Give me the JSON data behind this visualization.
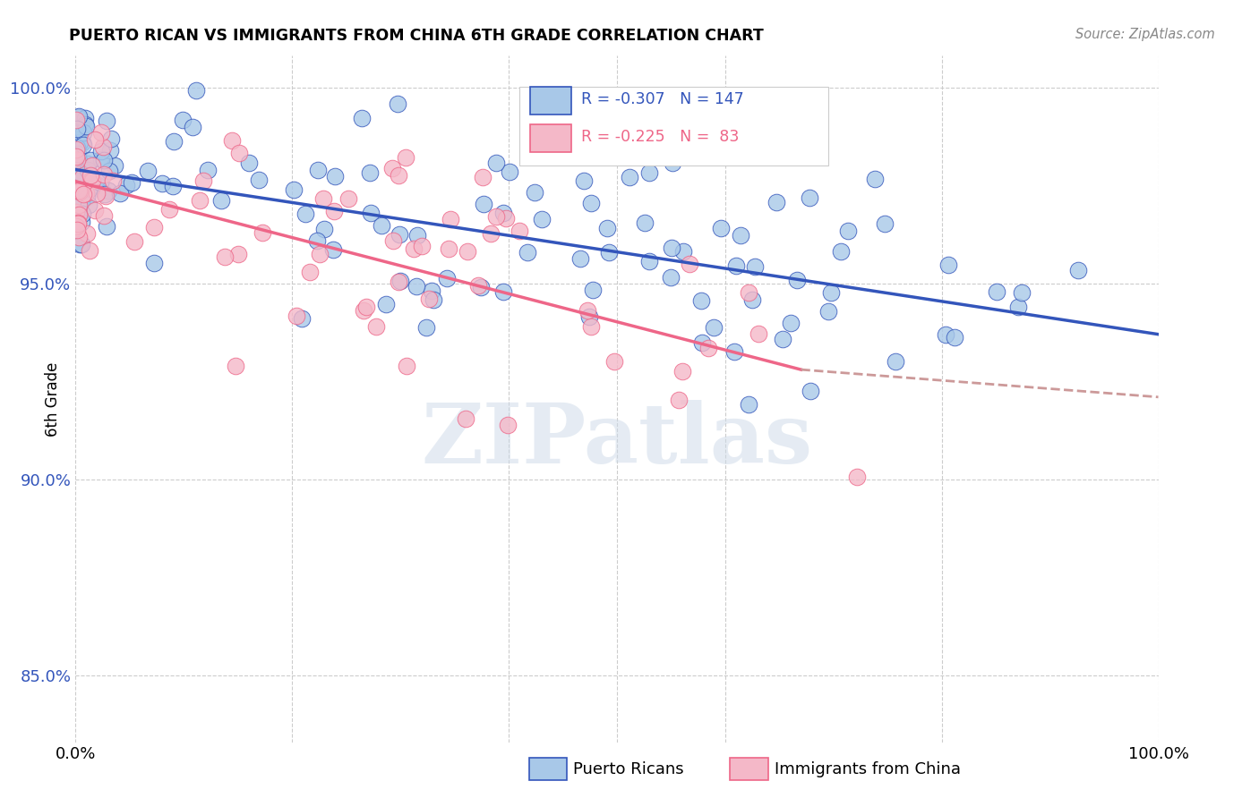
{
  "title": "PUERTO RICAN VS IMMIGRANTS FROM CHINA 6TH GRADE CORRELATION CHART",
  "source": "Source: ZipAtlas.com",
  "ylabel": "6th Grade",
  "legend_label1": "Puerto Ricans",
  "legend_label2": "Immigrants from China",
  "watermark": "ZIPatlas",
  "r1": -0.307,
  "n1": 147,
  "r2": -0.225,
  "n2": 83,
  "color_blue": "#a8c8e8",
  "color_pink": "#f4b8c8",
  "line_blue": "#3355bb",
  "line_pink": "#ee6688",
  "line_pink_dash": "#cc9999",
  "xmin": 0.0,
  "xmax": 1.0,
  "ymin": 0.833,
  "ymax": 1.008,
  "yticks": [
    0.85,
    0.9,
    0.95,
    1.0
  ],
  "ytick_labels": [
    "85.0%",
    "90.0%",
    "95.0%",
    "100.0%"
  ],
  "blue_line_y0": 0.979,
  "blue_line_y1": 0.937,
  "pink_line_y0": 0.976,
  "pink_line_y1_solid": 0.928,
  "pink_solid_xend": 0.67,
  "pink_line_y1_dash": 0.921
}
